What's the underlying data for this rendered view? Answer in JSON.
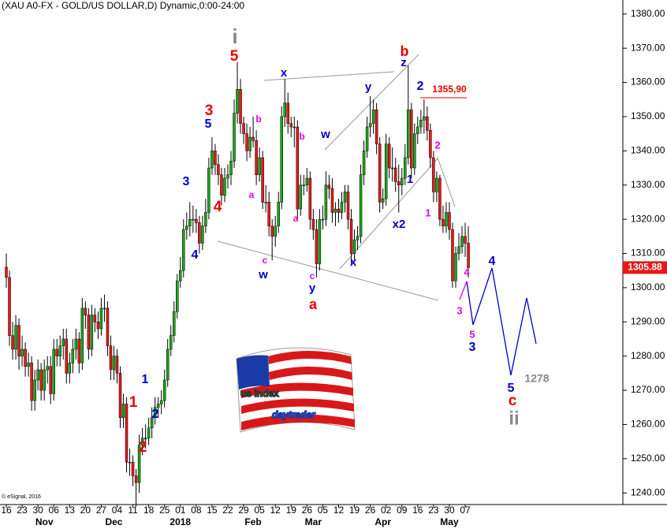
{
  "chart_data": {
    "type": "candlestick",
    "title": "(XAU A0-FX - GOLD/US DOLLAR,D) Dynamic,0:00-24:00",
    "footnote": "© eSignal, 2016",
    "logo": [
      "us index",
      "daytrader"
    ],
    "up_color": "#18a818",
    "down_color": "#e81818",
    "categories": [
      "16",
      null,
      null,
      null,
      null,
      "23",
      null,
      null,
      null,
      null,
      "30",
      null,
      null,
      null,
      null,
      "06",
      null,
      null,
      null,
      null,
      "13",
      null,
      null,
      null,
      null,
      "20",
      null,
      null,
      null,
      null,
      "27",
      null,
      null,
      null,
      null,
      "04",
      null,
      null,
      null,
      null,
      "11",
      null,
      null,
      null,
      null,
      "18",
      null,
      null,
      null,
      null,
      "25",
      null,
      null,
      null,
      null,
      "01",
      null,
      null,
      null,
      null,
      "08",
      null,
      null,
      null,
      null,
      "15",
      null,
      null,
      null,
      null,
      "22",
      null,
      null,
      null,
      null,
      "29",
      null,
      null,
      null,
      null,
      "05",
      null,
      null,
      null,
      null,
      "12",
      null,
      null,
      null,
      null,
      "19",
      null,
      null,
      null,
      null,
      "26",
      null,
      null,
      null,
      null,
      "05",
      null,
      null,
      null,
      null,
      "12",
      null,
      null,
      null,
      null,
      "19",
      null,
      null,
      null,
      null,
      "26",
      null,
      null,
      null,
      null,
      "02",
      null,
      null,
      null,
      null,
      "09",
      null,
      null,
      null,
      null,
      "16",
      null,
      null,
      null,
      null,
      "23",
      null,
      null,
      null,
      null,
      "30",
      null,
      null,
      null,
      null,
      "07",
      null
    ],
    "month_categories": [
      null,
      null,
      null,
      null,
      null,
      null,
      null,
      null,
      null,
      null,
      null,
      null,
      "Nov",
      null,
      null,
      null,
      null,
      null,
      null,
      null,
      null,
      null,
      null,
      null,
      null,
      null,
      null,
      null,
      null,
      null,
      null,
      null,
      null,
      null,
      "Dec",
      null,
      null,
      null,
      null,
      null,
      null,
      null,
      null,
      null,
      null,
      null,
      null,
      null,
      null,
      null,
      null,
      null,
      null,
      null,
      null,
      "2018",
      null,
      null,
      null,
      null,
      null,
      null,
      null,
      null,
      null,
      null,
      null,
      null,
      null,
      null,
      null,
      null,
      null,
      null,
      null,
      null,
      null,
      null,
      "Feb",
      null,
      null,
      null,
      null,
      null,
      null,
      null,
      null,
      null,
      null,
      null,
      null,
      null,
      null,
      null,
      null,
      null,
      null,
      "Mar",
      null,
      null,
      null,
      null,
      null,
      null,
      null,
      null,
      null,
      null,
      null,
      null,
      null,
      null,
      null,
      null,
      null,
      null,
      null,
      null,
      null,
      "Apr",
      null,
      null,
      null,
      null,
      null,
      null,
      null,
      null,
      null,
      null,
      null,
      null,
      null,
      null,
      null,
      null,
      null,
      null,
      null,
      null,
      "May",
      null,
      null,
      null,
      null,
      null
    ],
    "candles": [
      [
        1306,
        1310,
        1300,
        1303
      ],
      [
        1303,
        1305,
        1283,
        1286
      ],
      [
        1286,
        1290,
        1279,
        1282
      ],
      [
        1282,
        1292,
        1279,
        1289
      ],
      [
        1289,
        1291,
        1276,
        1280
      ],
      [
        1280,
        1286,
        1277,
        1282
      ],
      [
        1282,
        1284,
        1274,
        1277
      ],
      [
        1277,
        1281,
        1274,
        1278
      ],
      [
        1278,
        1280,
        1264,
        1267
      ],
      [
        1267,
        1276,
        1264,
        1273
      ],
      [
        1273,
        1279,
        1270,
        1276
      ],
      [
        1276,
        1278,
        1267,
        1270
      ],
      [
        1270,
        1279,
        1267,
        1276
      ],
      [
        1276,
        1280,
        1272,
        1277
      ],
      [
        1277,
        1280,
        1266,
        1269
      ],
      [
        1269,
        1285,
        1267,
        1282
      ],
      [
        1282,
        1285,
        1277,
        1280
      ],
      [
        1280,
        1286,
        1277,
        1283
      ],
      [
        1283,
        1288,
        1279,
        1285
      ],
      [
        1285,
        1288,
        1272,
        1275
      ],
      [
        1275,
        1281,
        1272,
        1278
      ],
      [
        1278,
        1285,
        1275,
        1282
      ],
      [
        1282,
        1288,
        1279,
        1285
      ],
      [
        1285,
        1287,
        1275,
        1278
      ],
      [
        1278,
        1297,
        1276,
        1294
      ],
      [
        1294,
        1296,
        1288,
        1292
      ],
      [
        1292,
        1294,
        1279,
        1282
      ],
      [
        1282,
        1295,
        1280,
        1292
      ],
      [
        1292,
        1294,
        1287,
        1290
      ],
      [
        1290,
        1293,
        1285,
        1288
      ],
      [
        1288,
        1297,
        1286,
        1294
      ],
      [
        1294,
        1298,
        1290,
        1294
      ],
      [
        1294,
        1296,
        1280,
        1283
      ],
      [
        1283,
        1286,
        1273,
        1276
      ],
      [
        1276,
        1283,
        1273,
        1280
      ],
      [
        1280,
        1282,
        1272,
        1275
      ],
      [
        1275,
        1277,
        1259,
        1262
      ],
      [
        1262,
        1269,
        1259,
        1266
      ],
      [
        1266,
        1268,
        1246,
        1249
      ],
      [
        1249,
        1253,
        1245,
        1249
      ],
      [
        1249,
        1251,
        1242,
        1245
      ],
      [
        1245,
        1247,
        1236,
        1243
      ],
      [
        1243,
        1257,
        1240,
        1254
      ],
      [
        1254,
        1259,
        1251,
        1256
      ],
      [
        1256,
        1260,
        1253,
        1256
      ],
      [
        1256,
        1262,
        1254,
        1259
      ],
      [
        1259,
        1265,
        1256,
        1262
      ],
      [
        1262,
        1268,
        1260,
        1265
      ],
      [
        1265,
        1268,
        1262,
        1266
      ],
      [
        1266,
        1270,
        1263,
        1267
      ],
      [
        1267,
        1276,
        1265,
        1273
      ],
      [
        1273,
        1285,
        1271,
        1282
      ],
      [
        1282,
        1289,
        1280,
        1286
      ],
      [
        1286,
        1296,
        1284,
        1293
      ],
      [
        1293,
        1304,
        1291,
        1302
      ],
      [
        1302,
        1309,
        1300,
        1305
      ],
      [
        1305,
        1320,
        1303,
        1317
      ],
      [
        1317,
        1322,
        1314,
        1318
      ],
      [
        1318,
        1325,
        1315,
        1320
      ],
      [
        1320,
        1324,
        1316,
        1320
      ],
      [
        1320,
        1323,
        1316,
        1319
      ],
      [
        1319,
        1321,
        1310,
        1313
      ],
      [
        1313,
        1321,
        1311,
        1318
      ],
      [
        1318,
        1326,
        1316,
        1322
      ],
      [
        1322,
        1338,
        1320,
        1335
      ],
      [
        1335,
        1344,
        1333,
        1340
      ],
      [
        1340,
        1342,
        1333,
        1336
      ],
      [
        1336,
        1339,
        1330,
        1333
      ],
      [
        1333,
        1335,
        1324,
        1327
      ],
      [
        1327,
        1335,
        1325,
        1332
      ],
      [
        1332,
        1336,
        1329,
        1333
      ],
      [
        1333,
        1340,
        1330,
        1337
      ],
      [
        1337,
        1355,
        1335,
        1351
      ],
      [
        1351,
        1366,
        1348,
        1358
      ],
      [
        1358,
        1361,
        1345,
        1348
      ],
      [
        1348,
        1350,
        1342,
        1345
      ],
      [
        1345,
        1348,
        1337,
        1340
      ],
      [
        1340,
        1347,
        1338,
        1344
      ],
      [
        1344,
        1350,
        1341,
        1343
      ],
      [
        1343,
        1346,
        1330,
        1333
      ],
      [
        1333,
        1341,
        1331,
        1338
      ],
      [
        1338,
        1340,
        1323,
        1325
      ],
      [
        1325,
        1330,
        1322,
        1325
      ],
      [
        1325,
        1328,
        1315,
        1318
      ],
      [
        1318,
        1320,
        1308,
        1315
      ],
      [
        1315,
        1321,
        1312,
        1318
      ],
      [
        1318,
        1328,
        1316,
        1325
      ],
      [
        1325,
        1353,
        1323,
        1350
      ],
      [
        1350,
        1361,
        1347,
        1354
      ],
      [
        1354,
        1357,
        1345,
        1348
      ],
      [
        1348,
        1350,
        1344,
        1347
      ],
      [
        1347,
        1350,
        1341,
        1347
      ],
      [
        1347,
        1349,
        1320,
        1323
      ],
      [
        1323,
        1333,
        1321,
        1330
      ],
      [
        1330,
        1333,
        1327,
        1330
      ],
      [
        1330,
        1335,
        1328,
        1332
      ],
      [
        1332,
        1334,
        1317,
        1320
      ],
      [
        1320,
        1323,
        1314,
        1317
      ],
      [
        1317,
        1320,
        1303,
        1307
      ],
      [
        1307,
        1323,
        1305,
        1320
      ],
      [
        1320,
        1324,
        1317,
        1320
      ],
      [
        1320,
        1334,
        1318,
        1330
      ],
      [
        1330,
        1333,
        1326,
        1329
      ],
      [
        1329,
        1332,
        1319,
        1322
      ],
      [
        1322,
        1325,
        1318,
        1323
      ],
      [
        1323,
        1326,
        1319,
        1322
      ],
      [
        1322,
        1328,
        1320,
        1325
      ],
      [
        1325,
        1330,
        1322,
        1328
      ],
      [
        1328,
        1330,
        1317,
        1320
      ],
      [
        1320,
        1323,
        1307,
        1310
      ],
      [
        1310,
        1317,
        1308,
        1314
      ],
      [
        1314,
        1318,
        1311,
        1315
      ],
      [
        1315,
        1336,
        1313,
        1333
      ],
      [
        1333,
        1343,
        1330,
        1340
      ],
      [
        1340,
        1350,
        1338,
        1347
      ],
      [
        1347,
        1356,
        1344,
        1348
      ],
      [
        1348,
        1355,
        1345,
        1352
      ],
      [
        1352,
        1354,
        1339,
        1342
      ],
      [
        1342,
        1344,
        1322,
        1325
      ],
      [
        1325,
        1329,
        1323,
        1326
      ],
      [
        1326,
        1345,
        1324,
        1342
      ],
      [
        1342,
        1344,
        1332,
        1335
      ],
      [
        1335,
        1341,
        1331,
        1335
      ],
      [
        1335,
        1338,
        1328,
        1331
      ],
      [
        1331,
        1336,
        1322,
        1330
      ],
      [
        1330,
        1335,
        1327,
        1332
      ],
      [
        1332,
        1342,
        1330,
        1338
      ],
      [
        1338,
        1365,
        1336,
        1352
      ],
      [
        1352,
        1354,
        1332,
        1335
      ],
      [
        1335,
        1348,
        1333,
        1345
      ],
      [
        1345,
        1350,
        1342,
        1347
      ],
      [
        1347,
        1352,
        1345,
        1349
      ],
      [
        1349,
        1355,
        1345,
        1350
      ],
      [
        1350,
        1353,
        1343,
        1346
      ],
      [
        1346,
        1348,
        1335,
        1338
      ],
      [
        1338,
        1340,
        1325,
        1328
      ],
      [
        1328,
        1334,
        1325,
        1332
      ],
      [
        1332,
        1333,
        1318,
        1320
      ],
      [
        1320,
        1324,
        1316,
        1318
      ],
      [
        1318,
        1325,
        1316,
        1322
      ],
      [
        1322,
        1325,
        1314,
        1317
      ],
      [
        1317,
        1319,
        1300,
        1302
      ],
      [
        1302,
        1312,
        1300,
        1310
      ],
      [
        1310,
        1316,
        1308,
        1312
      ],
      [
        1312,
        1318,
        1310,
        1315
      ],
      [
        1315,
        1319,
        1309,
        1313
      ],
      [
        1313,
        1318,
        1303,
        1305.88
      ]
    ],
    "ylim": [
      1236.6,
      1384.1
    ],
    "yticks": [
      {
        "value": 1240,
        "label": "1240.00"
      },
      {
        "value": 1250,
        "label": "1250.00"
      },
      {
        "value": 1260,
        "label": "1260.00"
      },
      {
        "value": 1270,
        "label": "1270.00"
      },
      {
        "value": 1280,
        "label": "1280.00"
      },
      {
        "value": 1290,
        "label": "1290.00"
      },
      {
        "value": 1300,
        "label": "1300.00"
      },
      {
        "value": 1310,
        "label": "1310.00"
      },
      {
        "value": 1320,
        "label": "1320.00"
      },
      {
        "value": 1330,
        "label": "1330.00"
      },
      {
        "value": 1340,
        "label": "1340.00"
      },
      {
        "value": 1350,
        "label": "1350.00"
      },
      {
        "value": 1360,
        "label": "1360.00"
      },
      {
        "value": 1370,
        "label": "1370.00"
      },
      {
        "value": 1380,
        "label": "1380.00"
      }
    ],
    "annotations": [
      {
        "text": "i",
        "color": "#888888"
      },
      {
        "text": "5",
        "color": "#e80000"
      },
      {
        "text": "3",
        "color": "#e80000"
      },
      {
        "text": "5",
        "color": "#0000cc"
      },
      {
        "text": "4",
        "color": "#e80000"
      },
      {
        "text": "3",
        "color": "#0000cc"
      },
      {
        "text": "4",
        "color": "#0000cc"
      },
      {
        "text": "1",
        "color": "#e80000"
      },
      {
        "text": "2",
        "color": "#e80000"
      },
      {
        "text": "1",
        "color": "#0000cc"
      },
      {
        "text": "2",
        "color": "#0000cc"
      },
      {
        "text": "x",
        "color": "#0000cc"
      },
      {
        "text": "b",
        "color": "#e800e8"
      },
      {
        "text": "a",
        "color": "#e800e8"
      },
      {
        "text": "c",
        "color": "#e800e8"
      },
      {
        "text": "w",
        "color": "#0000cc"
      },
      {
        "text": "b",
        "color": "#e800e8"
      },
      {
        "text": "w",
        "color": "#0000cc"
      },
      {
        "text": "a",
        "color": "#e800e8"
      },
      {
        "text": "c",
        "color": "#e800e8"
      },
      {
        "text": "y",
        "color": "#0000cc"
      },
      {
        "text": "a",
        "color": "#e80000"
      },
      {
        "text": "x",
        "color": "#0000cc"
      },
      {
        "text": "y",
        "color": "#0000cc"
      },
      {
        "text": "b",
        "color": "#e80000"
      },
      {
        "text": "z",
        "color": "#0000cc"
      },
      {
        "text": "2",
        "color": "#0000cc"
      },
      {
        "text": "1355,90",
        "color": "#e80000"
      },
      {
        "text": "1",
        "color": "#0000cc"
      },
      {
        "text": "x2",
        "color": "#0000cc"
      },
      {
        "text": "2",
        "color": "#e800e8"
      },
      {
        "text": "1",
        "color": "#e800e8"
      },
      {
        "text": "4",
        "color": "#e800e8"
      },
      {
        "text": "3",
        "color": "#e800e8"
      },
      {
        "text": "5",
        "color": "#e800e8"
      },
      {
        "text": "3",
        "color": "#0000cc"
      },
      {
        "text": "4",
        "color": "#0000cc"
      },
      {
        "text": "5",
        "color": "#0000cc"
      },
      {
        "text": "c",
        "color": "#e80000"
      },
      {
        "text": "ii",
        "color": "#888888"
      },
      {
        "text": "1278",
        "color": "#888888"
      }
    ]
  }
}
